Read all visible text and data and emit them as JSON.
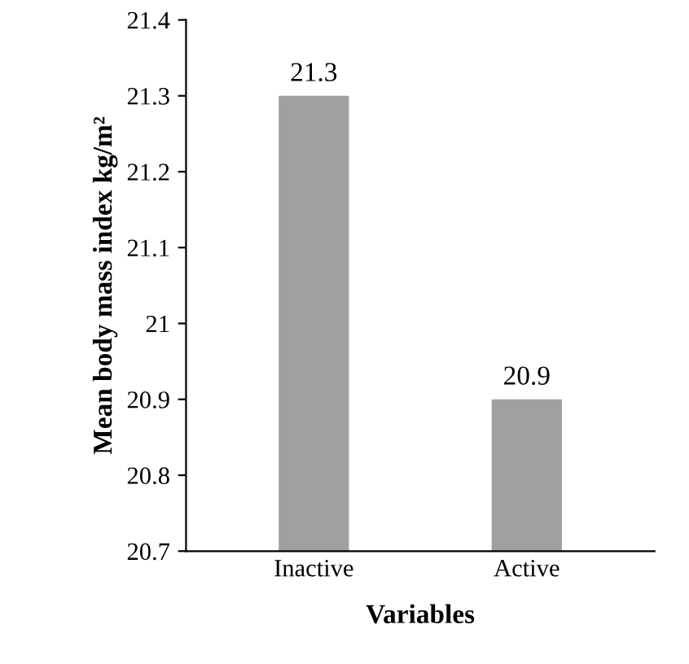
{
  "chart_data": {
    "type": "bar",
    "xlabel": "Variables",
    "ylabel": "Mean body mass index kg/m²",
    "categories": [
      "Inactive",
      "Active"
    ],
    "values": [
      21.3,
      20.9
    ],
    "color": "#a0a0a0",
    "ylim": [
      20.7,
      21.4
    ],
    "yticks": [
      20.7,
      20.8,
      20.9,
      21,
      21.1,
      21.2,
      21.3,
      21.4
    ],
    "data_labels": true,
    "grid": false,
    "legend": false
  }
}
